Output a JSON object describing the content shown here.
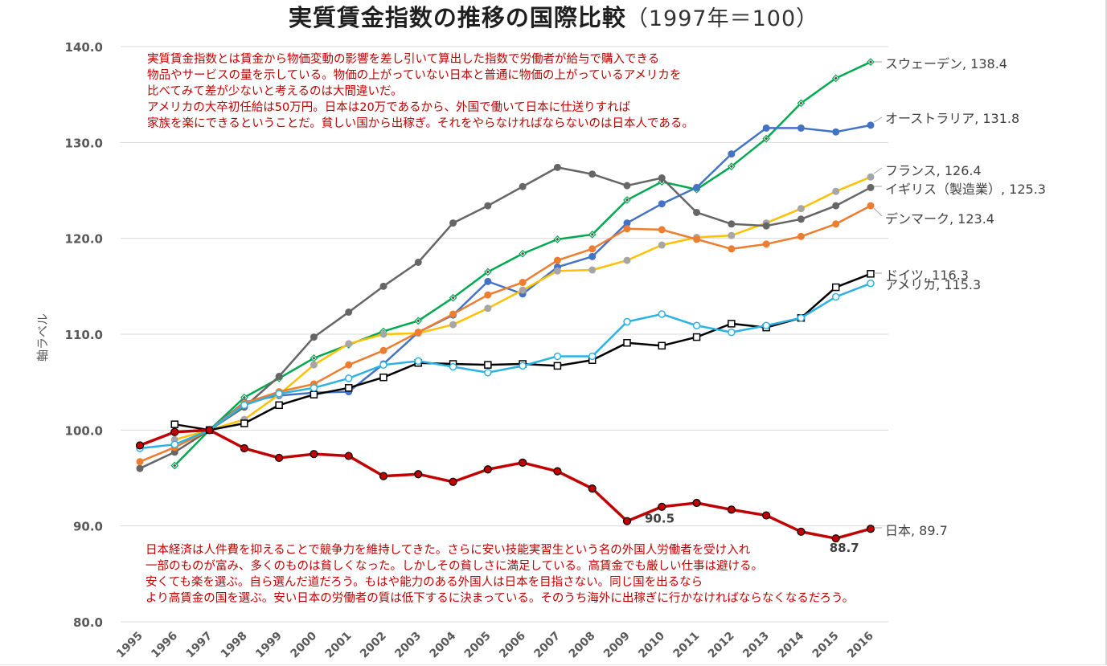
{
  "chart_data": {
    "type": "line",
    "title": "実質賃金指数の推移の国際比較",
    "subtitle": "（1997年＝100）",
    "ylabel": "軸ラベル",
    "xlabel": "",
    "ylim": [
      80,
      140
    ],
    "yticks": [
      "80.0",
      "90.0",
      "100.0",
      "110.0",
      "120.0",
      "130.0",
      "140.0"
    ],
    "grid": true,
    "categories": [
      "1995",
      "1996",
      "1997",
      "1998",
      "1999",
      "2000",
      "2001",
      "2002",
      "2003",
      "2004",
      "2005",
      "2006",
      "2007",
      "2008",
      "2009",
      "2010",
      "2011",
      "2012",
      "2013",
      "2014",
      "2015",
      "2016"
    ],
    "series": [
      {
        "name": "スウェーデン",
        "end_label": "スウェーデン, 138.4",
        "color": "#00a84f",
        "marker": "diamond",
        "values": [
          null,
          96.3,
          100,
          103.4,
          105.4,
          107.5,
          108.9,
          110.3,
          111.4,
          113.8,
          116.5,
          118.4,
          119.9,
          120.4,
          124.0,
          125.9,
          125.1,
          127.5,
          130.4,
          134.1,
          136.7,
          138.4
        ]
      },
      {
        "name": "オーストラリア",
        "end_label": "オーストラリア, 131.8",
        "color": "#4472c4",
        "marker": "circle",
        "values": [
          null,
          null,
          100,
          102.9,
          103.6,
          103.9,
          104.0,
          106.9,
          110.2,
          112.0,
          115.5,
          114.2,
          117.0,
          118.1,
          121.6,
          123.6,
          125.3,
          128.8,
          131.5,
          131.5,
          131.1,
          131.8
        ]
      },
      {
        "name": "フランス",
        "end_label": "フランス, 126.4",
        "color": "#ffc000",
        "marker": "circle-gray",
        "values": [
          null,
          99.0,
          100,
          101.1,
          103.7,
          106.8,
          109.0,
          110.0,
          110.1,
          111.0,
          112.7,
          114.6,
          116.6,
          116.7,
          117.7,
          119.3,
          120.1,
          120.3,
          121.6,
          123.1,
          124.9,
          126.4
        ]
      },
      {
        "name": "イギリス（製造業）",
        "end_label": "イギリス（製造業）, 125.3",
        "color": "#666666",
        "marker": "circle",
        "values": [
          96.0,
          97.7,
          100,
          102.4,
          105.6,
          109.7,
          112.3,
          115.0,
          117.5,
          121.6,
          123.4,
          125.4,
          127.4,
          126.7,
          125.5,
          126.3,
          122.7,
          121.5,
          121.3,
          122.0,
          123.4,
          125.3
        ]
      },
      {
        "name": "デンマーク",
        "end_label": "デンマーク, 123.4",
        "color": "#ed7d31",
        "marker": "circle",
        "values": [
          96.7,
          98.2,
          100,
          102.8,
          104.0,
          104.8,
          106.8,
          108.3,
          110.2,
          112.1,
          114.1,
          115.4,
          117.7,
          118.9,
          121.0,
          120.9,
          119.9,
          118.9,
          119.4,
          120.2,
          121.5,
          123.4
        ]
      },
      {
        "name": "ドイツ",
        "end_label": "ドイツ, 116.3",
        "color": "#000000",
        "marker": "square",
        "values": [
          null,
          100.6,
          100,
          100.7,
          102.6,
          103.7,
          104.4,
          105.5,
          107.0,
          106.9,
          106.8,
          106.9,
          106.7,
          107.3,
          109.1,
          108.8,
          109.7,
          111.1,
          110.7,
          111.7,
          114.9,
          116.3
        ]
      },
      {
        "name": "アメリカ",
        "end_label": "アメリカ, 115.3",
        "color": "#2ab2e3",
        "marker": "circle-open",
        "values": [
          98.1,
          98.5,
          100,
          102.6,
          103.8,
          104.4,
          105.4,
          106.8,
          107.2,
          106.6,
          106.0,
          106.7,
          107.7,
          107.7,
          111.3,
          112.1,
          110.9,
          110.2,
          110.9,
          111.7,
          113.9,
          115.3
        ]
      },
      {
        "name": "日本",
        "end_label": "日本, 89.7",
        "color": "#c00000",
        "marker": "circle-red",
        "values": [
          98.4,
          99.8,
          100,
          98.1,
          97.1,
          97.5,
          97.3,
          95.2,
          95.4,
          94.6,
          95.9,
          96.6,
          95.7,
          93.9,
          90.5,
          92.0,
          92.4,
          91.7,
          91.1,
          89.4,
          88.7,
          89.7
        ]
      }
    ],
    "annotations": [
      {
        "text": "90.5",
        "year": "2009",
        "value": 90.5
      },
      {
        "text": "88.7",
        "year": "2015",
        "value": 88.7
      }
    ]
  },
  "notes": {
    "top": [
      "実質賃金指数とは賃金から物価変動の影響を差し引いて算出した指数で労働者が給与で購入できる",
      "物品やサービスの量を示している。物価の上がっていない日本と普通に物価の上がっているアメリカを",
      "比べてみて差が少ないと考えるのは大間違いだ。",
      "アメリカの大卒初任給は50万円。日本は20万であるから、外国で働いて日本に仕送りすれば",
      "家族を楽にできるということだ。貧しい国から出稼ぎ。それをやらなければならないのは日本人である。"
    ],
    "bottom": [
      "日本経済は人件費を抑えることで競争力を維持してきた。さらに安い技能実習生という名の外国人労働者を受け入れ",
      "一部のものが富み、多くのものは貧しくなった。しかしその貧しさに満足している。高賃金でも厳しい仕事は避ける。",
      "安くても楽を選ぶ。自ら選んだ道だろう。もはや能力のある外国人は日本を目指さない。同じ国を出るなら",
      "より高賃金の国を選ぶ。安い日本の労働者の質は低下するに決まっている。そのうち海外に出稼ぎに行かなければならなくなるだろう。"
    ]
  }
}
